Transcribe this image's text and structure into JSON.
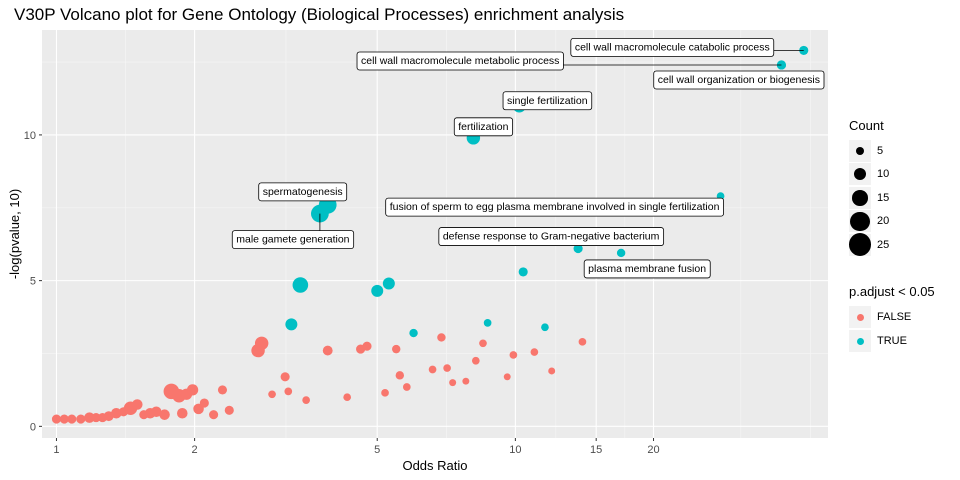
{
  "chart_data": {
    "type": "scatter",
    "title": "V30P Volcano plot for Gene Ontology (Biological Processes) enrichment analysis",
    "xlabel": "Odds Ratio",
    "ylabel": "-log(pvalue, 10)",
    "x_scale": "log10",
    "xlim": [
      0.93,
      48
    ],
    "ylim": [
      -0.4,
      13.6
    ],
    "x_ticks": [
      1,
      2,
      5,
      10,
      15,
      20
    ],
    "x_tick_labels": [
      "1",
      "2",
      "5",
      "10",
      "15",
      "20"
    ],
    "y_ticks": [
      0,
      5,
      10
    ],
    "y_tick_labels": [
      "0",
      "5",
      "10"
    ],
    "grid": true,
    "legend_position": "right",
    "size_legend": {
      "title": "Count",
      "entries": [
        {
          "label": "5",
          "value": 5
        },
        {
          "label": "10",
          "value": 10
        },
        {
          "label": "15",
          "value": 15
        },
        {
          "label": "20",
          "value": 20
        },
        {
          "label": "25",
          "value": 25
        }
      ]
    },
    "color_legend": {
      "title": "p.adjust < 0.05",
      "entries": [
        {
          "label": "FALSE",
          "color": "#F8766D"
        },
        {
          "label": "TRUE",
          "color": "#00BFC4"
        }
      ]
    },
    "significant_points": [
      {
        "x": 42.5,
        "y": 12.9,
        "count": 6,
        "label": "cell wall macromolecule catabolic process"
      },
      {
        "x": 38.0,
        "y": 12.4,
        "count": 6,
        "label": "cell wall macromolecule metabolic process"
      },
      {
        "x": 38.0,
        "y": 12.4,
        "count": 6,
        "label": "cell wall organization or biogenesis"
      },
      {
        "x": 10.2,
        "y": 11.0,
        "count": 12,
        "label": "single fertilization"
      },
      {
        "x": 8.1,
        "y": 9.9,
        "count": 12,
        "label": "fertilization"
      },
      {
        "x": 3.9,
        "y": 7.6,
        "count": 18,
        "label": "spermatogenesis"
      },
      {
        "x": 3.75,
        "y": 7.3,
        "count": 18,
        "label": "male gamete generation"
      },
      {
        "x": 28.0,
        "y": 7.9,
        "count": 4,
        "label": "fusion of sperm to egg plasma membrane involved in single fertilization"
      },
      {
        "x": 13.7,
        "y": 6.1,
        "count": 6,
        "label": "defense response to Gram-negative bacterium"
      },
      {
        "x": 17.0,
        "y": 5.95,
        "count": 5,
        "label": "plasma membrane fusion"
      },
      {
        "x": 3.4,
        "y": 4.85,
        "count": 15,
        "label": ""
      },
      {
        "x": 5.3,
        "y": 4.9,
        "count": 10,
        "label": ""
      },
      {
        "x": 5.0,
        "y": 4.65,
        "count": 10,
        "label": ""
      },
      {
        "x": 10.4,
        "y": 5.3,
        "count": 6,
        "label": ""
      },
      {
        "x": 3.25,
        "y": 3.5,
        "count": 10,
        "label": ""
      },
      {
        "x": 6.0,
        "y": 3.2,
        "count": 5,
        "label": ""
      },
      {
        "x": 8.7,
        "y": 3.55,
        "count": 4,
        "label": ""
      },
      {
        "x": 11.6,
        "y": 3.4,
        "count": 4,
        "label": ""
      }
    ],
    "nonsignificant_points": [
      {
        "x": 1.0,
        "y": 0.25,
        "count": 6
      },
      {
        "x": 1.04,
        "y": 0.25,
        "count": 6
      },
      {
        "x": 1.08,
        "y": 0.25,
        "count": 6
      },
      {
        "x": 1.13,
        "y": 0.25,
        "count": 6
      },
      {
        "x": 1.18,
        "y": 0.3,
        "count": 8
      },
      {
        "x": 1.22,
        "y": 0.3,
        "count": 6
      },
      {
        "x": 1.26,
        "y": 0.3,
        "count": 6
      },
      {
        "x": 1.3,
        "y": 0.35,
        "count": 7
      },
      {
        "x": 1.35,
        "y": 0.45,
        "count": 8
      },
      {
        "x": 1.4,
        "y": 0.5,
        "count": 6
      },
      {
        "x": 1.45,
        "y": 0.62,
        "count": 12
      },
      {
        "x": 1.5,
        "y": 0.75,
        "count": 8
      },
      {
        "x": 1.55,
        "y": 0.4,
        "count": 6
      },
      {
        "x": 1.6,
        "y": 0.45,
        "count": 8
      },
      {
        "x": 1.65,
        "y": 0.5,
        "count": 8
      },
      {
        "x": 1.72,
        "y": 0.4,
        "count": 8
      },
      {
        "x": 1.78,
        "y": 1.2,
        "count": 15
      },
      {
        "x": 1.85,
        "y": 1.05,
        "count": 12
      },
      {
        "x": 1.92,
        "y": 1.1,
        "count": 9
      },
      {
        "x": 1.98,
        "y": 1.25,
        "count": 9
      },
      {
        "x": 1.88,
        "y": 0.45,
        "count": 8
      },
      {
        "x": 2.04,
        "y": 0.6,
        "count": 8
      },
      {
        "x": 2.1,
        "y": 0.8,
        "count": 6
      },
      {
        "x": 2.2,
        "y": 0.4,
        "count": 6
      },
      {
        "x": 2.3,
        "y": 1.25,
        "count": 6
      },
      {
        "x": 2.38,
        "y": 0.55,
        "count": 6
      },
      {
        "x": 2.75,
        "y": 2.6,
        "count": 12
      },
      {
        "x": 2.8,
        "y": 2.85,
        "count": 12
      },
      {
        "x": 2.95,
        "y": 1.1,
        "count": 4
      },
      {
        "x": 3.15,
        "y": 1.7,
        "count": 6
      },
      {
        "x": 3.2,
        "y": 1.2,
        "count": 4
      },
      {
        "x": 3.5,
        "y": 0.9,
        "count": 4
      },
      {
        "x": 3.9,
        "y": 2.6,
        "count": 7
      },
      {
        "x": 4.3,
        "y": 1.0,
        "count": 4
      },
      {
        "x": 4.6,
        "y": 2.65,
        "count": 6
      },
      {
        "x": 4.75,
        "y": 2.75,
        "count": 6
      },
      {
        "x": 5.2,
        "y": 1.15,
        "count": 4
      },
      {
        "x": 5.5,
        "y": 2.65,
        "count": 5
      },
      {
        "x": 5.6,
        "y": 1.75,
        "count": 5
      },
      {
        "x": 5.8,
        "y": 1.35,
        "count": 4
      },
      {
        "x": 6.6,
        "y": 1.95,
        "count": 4
      },
      {
        "x": 6.9,
        "y": 3.05,
        "count": 5
      },
      {
        "x": 7.1,
        "y": 2.0,
        "count": 4
      },
      {
        "x": 7.3,
        "y": 1.5,
        "count": 3
      },
      {
        "x": 7.8,
        "y": 1.55,
        "count": 3
      },
      {
        "x": 8.2,
        "y": 2.25,
        "count": 4
      },
      {
        "x": 8.5,
        "y": 2.85,
        "count": 4
      },
      {
        "x": 9.6,
        "y": 1.7,
        "count": 3
      },
      {
        "x": 9.9,
        "y": 2.45,
        "count": 4
      },
      {
        "x": 11.0,
        "y": 2.55,
        "count": 4
      },
      {
        "x": 12.0,
        "y": 1.9,
        "count": 3
      },
      {
        "x": 14.0,
        "y": 2.9,
        "count": 4
      }
    ]
  }
}
